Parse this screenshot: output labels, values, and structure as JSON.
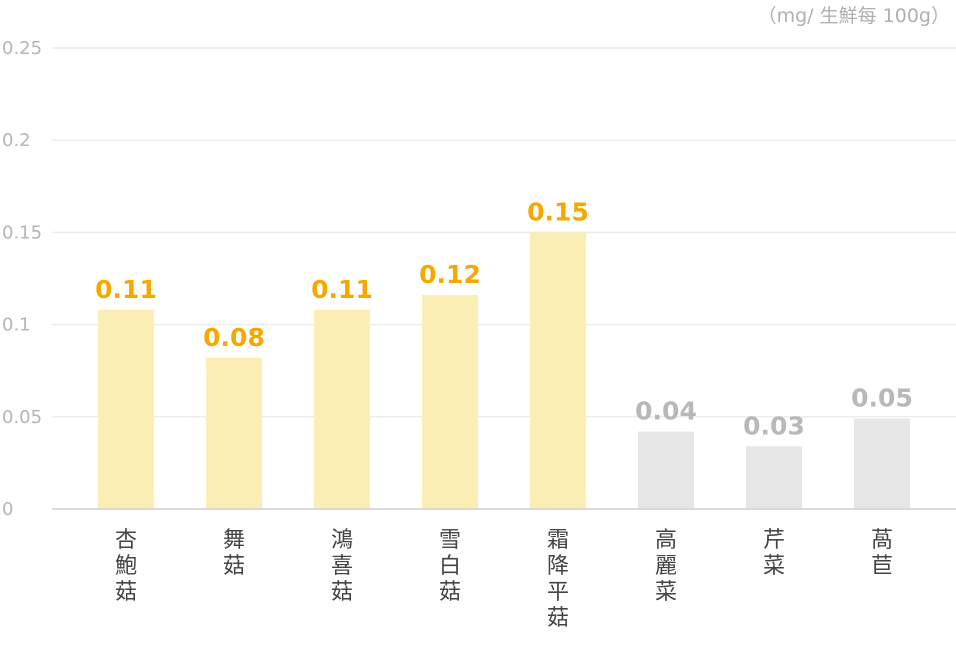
{
  "unit_label": "（mg/ 生鮮每 100g）",
  "colors": {
    "highlight_bar": "#fbeeb4",
    "highlight_label": "#f5a800",
    "other_bar": "#e6e6e6",
    "other_label": "#b8b8b8",
    "gridline": "#ececec",
    "axis": "#cfcfcf"
  },
  "chart_data": {
    "type": "bar",
    "title": "",
    "xlabel": "",
    "ylabel": "",
    "unit": "（mg/ 生鮮每 100g）",
    "ylim": [
      0,
      0.25
    ],
    "yticks": [
      {
        "value": 0,
        "label": "0"
      },
      {
        "value": 0.05,
        "label": "0.05"
      },
      {
        "value": 0.1,
        "label": "0.1"
      },
      {
        "value": 0.15,
        "label": "0.15"
      },
      {
        "value": 0.2,
        "label": "0.2"
      },
      {
        "value": 0.25,
        "label": "0.25"
      }
    ],
    "grid": true,
    "legend": "none",
    "categories": [
      "杏鮑菇",
      "舞菇",
      "鴻喜菇",
      "雪白菇",
      "霜降平菇",
      "高麗菜",
      "芹菜",
      "萵苣"
    ],
    "values": [
      0.108,
      0.082,
      0.108,
      0.116,
      0.15,
      0.042,
      0.034,
      0.049
    ],
    "value_labels": [
      "0.11",
      "0.08",
      "0.11",
      "0.12",
      "0.15",
      "0.04",
      "0.03",
      "0.05"
    ],
    "highlighted": [
      true,
      true,
      true,
      true,
      true,
      false,
      false,
      false
    ]
  }
}
